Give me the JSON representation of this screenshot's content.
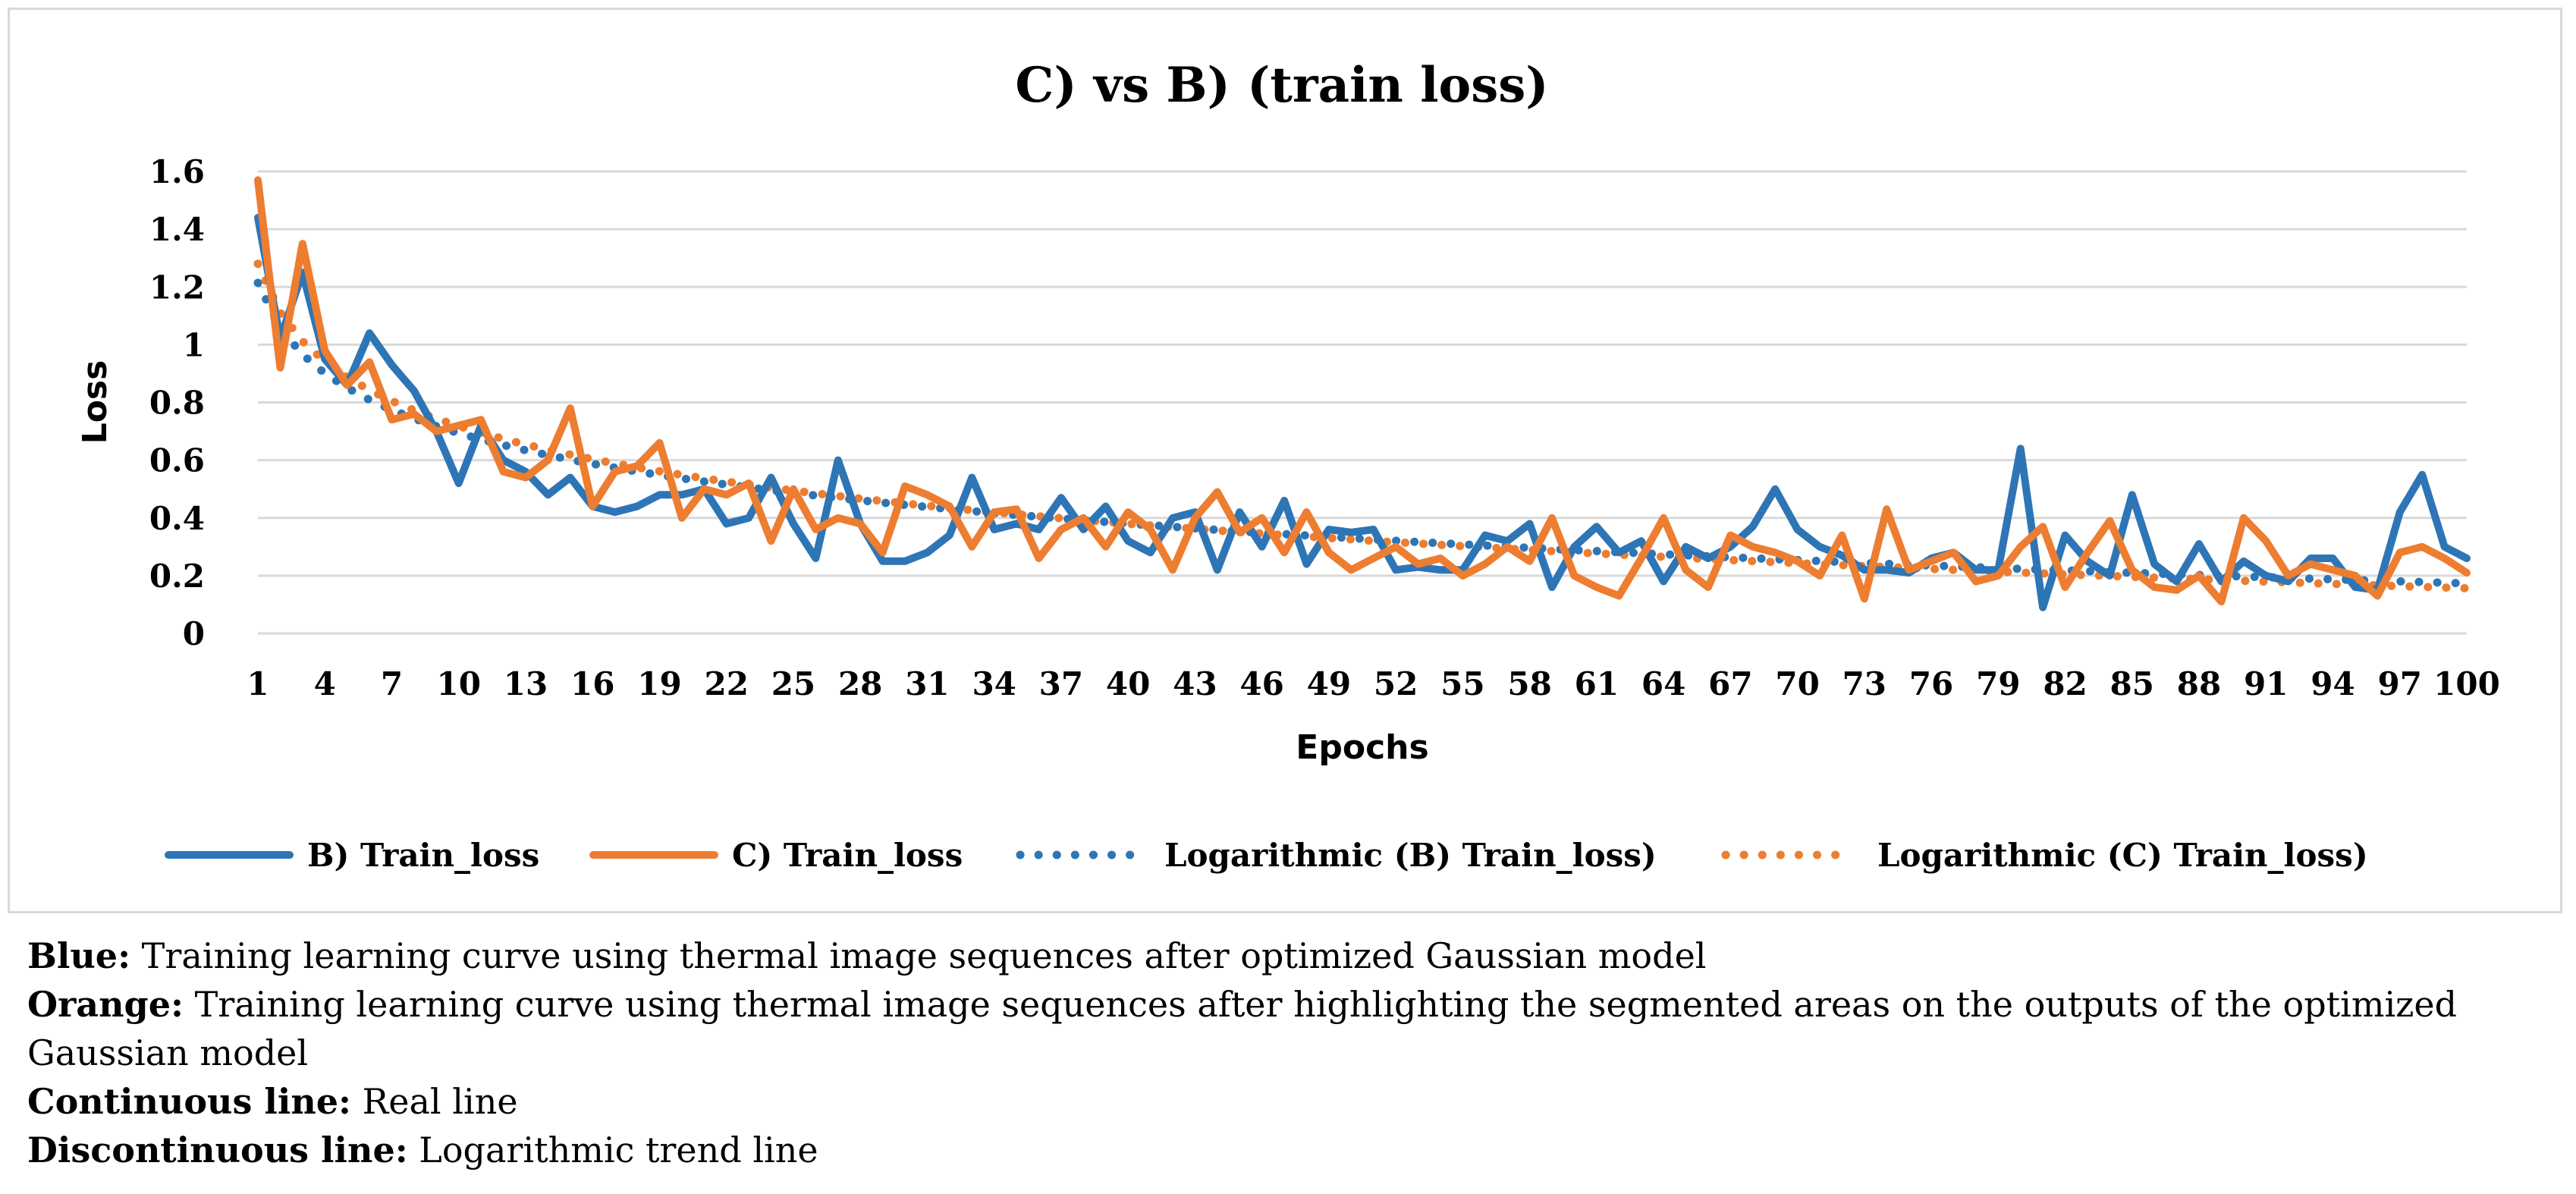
{
  "chart_data": {
    "type": "line",
    "title": "C) vs B) (train loss)",
    "xlabel": "Epochs",
    "ylabel": "Loss",
    "ylim": [
      0,
      1.6
    ],
    "yticks": [
      "0",
      "0.2",
      "0.4",
      "0.6",
      "0.8",
      "1",
      "1.2",
      "1.4",
      "1.6"
    ],
    "x_tick_labels": [
      "1",
      "4",
      "7",
      "10",
      "13",
      "16",
      "19",
      "22",
      "25",
      "28",
      "31",
      "34",
      "37",
      "40",
      "43",
      "46",
      "49",
      "52",
      "55",
      "58",
      "61",
      "64",
      "67",
      "70",
      "73",
      "76",
      "79",
      "82",
      "85",
      "88",
      "91",
      "94",
      "97",
      "100"
    ],
    "x": [
      1,
      2,
      3,
      4,
      5,
      6,
      7,
      8,
      9,
      10,
      11,
      12,
      13,
      14,
      15,
      16,
      17,
      18,
      19,
      20,
      21,
      22,
      23,
      24,
      25,
      26,
      27,
      28,
      29,
      30,
      31,
      32,
      33,
      34,
      35,
      36,
      37,
      38,
      39,
      40,
      41,
      42,
      43,
      44,
      45,
      46,
      47,
      48,
      49,
      50,
      51,
      52,
      53,
      54,
      55,
      56,
      57,
      58,
      59,
      60,
      61,
      62,
      63,
      64,
      65,
      66,
      67,
      68,
      69,
      70,
      71,
      72,
      73,
      74,
      75,
      76,
      77,
      78,
      79,
      80,
      81,
      82,
      83,
      84,
      85,
      86,
      87,
      88,
      89,
      90,
      91,
      92,
      93,
      94,
      95,
      96,
      97,
      98,
      99,
      100
    ],
    "grid": "horizontal",
    "legend_position": "bottom",
    "series": [
      {
        "name": "B) Train_loss",
        "color": "#2e75b6",
        "style": "solid",
        "values": [
          1.44,
          1.02,
          1.25,
          0.95,
          0.86,
          1.04,
          0.93,
          0.84,
          0.7,
          0.52,
          0.72,
          0.6,
          0.56,
          0.48,
          0.54,
          0.44,
          0.42,
          0.44,
          0.48,
          0.48,
          0.5,
          0.38,
          0.4,
          0.54,
          0.38,
          0.26,
          0.6,
          0.38,
          0.25,
          0.25,
          0.28,
          0.34,
          0.54,
          0.36,
          0.38,
          0.36,
          0.47,
          0.36,
          0.44,
          0.32,
          0.28,
          0.4,
          0.42,
          0.22,
          0.42,
          0.3,
          0.46,
          0.24,
          0.36,
          0.35,
          0.36,
          0.22,
          0.23,
          0.22,
          0.22,
          0.34,
          0.32,
          0.38,
          0.16,
          0.3,
          0.37,
          0.28,
          0.32,
          0.18,
          0.3,
          0.26,
          0.3,
          0.37,
          0.5,
          0.36,
          0.3,
          0.27,
          0.22,
          0.22,
          0.21,
          0.26,
          0.28,
          0.22,
          0.22,
          0.64,
          0.09,
          0.34,
          0.25,
          0.2,
          0.48,
          0.24,
          0.18,
          0.31,
          0.18,
          0.25,
          0.2,
          0.18,
          0.26,
          0.26,
          0.16,
          0.15,
          0.42,
          0.55,
          0.3,
          0.26
        ]
      },
      {
        "name": "C) Train_loss",
        "color": "#ed7d31",
        "style": "solid",
        "values": [
          1.57,
          0.92,
          1.35,
          0.98,
          0.86,
          0.94,
          0.74,
          0.76,
          0.7,
          0.72,
          0.74,
          0.56,
          0.54,
          0.6,
          0.78,
          0.44,
          0.56,
          0.58,
          0.66,
          0.4,
          0.5,
          0.48,
          0.52,
          0.32,
          0.5,
          0.36,
          0.4,
          0.38,
          0.28,
          0.51,
          0.48,
          0.44,
          0.3,
          0.42,
          0.43,
          0.26,
          0.36,
          0.4,
          0.3,
          0.42,
          0.36,
          0.22,
          0.4,
          0.49,
          0.35,
          0.4,
          0.28,
          0.42,
          0.28,
          0.22,
          0.26,
          0.3,
          0.24,
          0.26,
          0.2,
          0.24,
          0.3,
          0.25,
          0.4,
          0.2,
          0.16,
          0.13,
          0.26,
          0.4,
          0.22,
          0.16,
          0.34,
          0.3,
          0.28,
          0.25,
          0.2,
          0.34,
          0.12,
          0.43,
          0.22,
          0.25,
          0.28,
          0.18,
          0.2,
          0.3,
          0.37,
          0.16,
          0.28,
          0.39,
          0.22,
          0.16,
          0.15,
          0.2,
          0.11,
          0.4,
          0.32,
          0.2,
          0.24,
          0.22,
          0.2,
          0.13,
          0.28,
          0.3,
          0.26,
          0.21
        ]
      },
      {
        "name": "Logarithmic (B) Train_loss)",
        "color": "#2e75b6",
        "style": "dotted",
        "trend": {
          "a": 1.214,
          "b": -0.226
        }
      },
      {
        "name": "Logarithmic (C) Train_loss)",
        "color": "#ed7d31",
        "style": "dotted",
        "trend": {
          "a": 1.28,
          "b": -0.244
        }
      }
    ]
  },
  "caption": [
    {
      "key": "Blue:",
      "text": " Training learning curve using thermal image sequences after optimized Gaussian model"
    },
    {
      "key": "Orange:",
      "text": " Training learning curve using thermal image sequences after highlighting the segmented areas on the outputs of the optimized Gaussian model"
    },
    {
      "key": "Continuous line:",
      "text": " Real line"
    },
    {
      "key": "Discontinuous line:",
      "text": " Logarithmic trend line"
    }
  ]
}
